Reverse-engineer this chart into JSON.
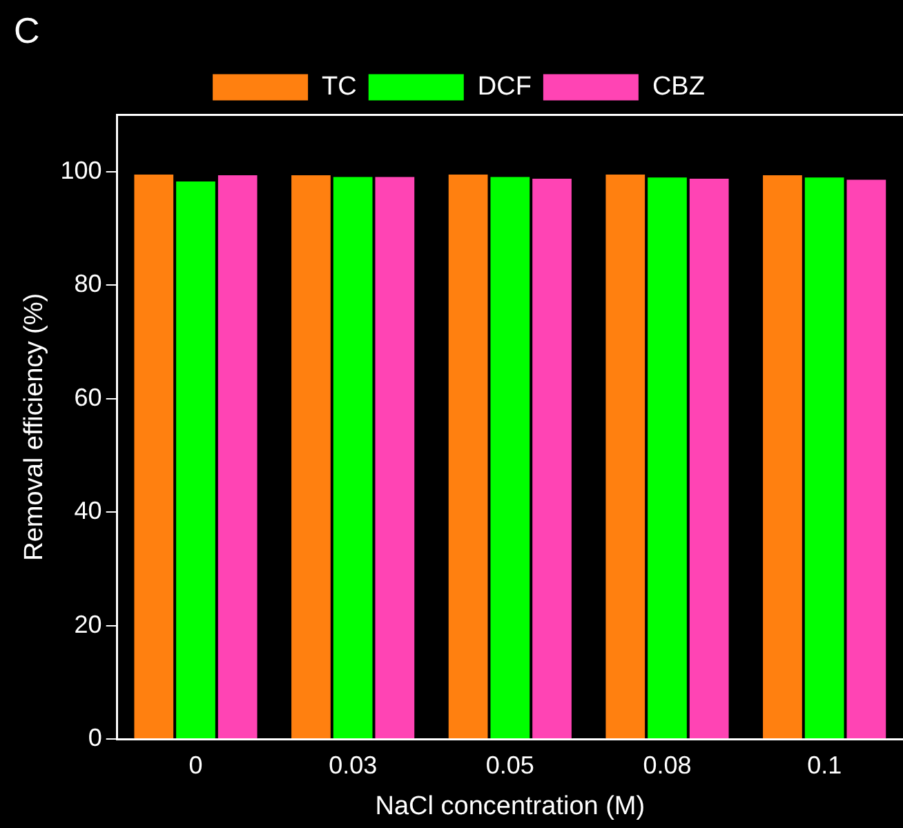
{
  "chart_data": {
    "type": "bar",
    "title": "C",
    "xlabel": "NaCl concentration (M)",
    "ylabel": "Removal efficiency (%)",
    "categories": [
      "0",
      "0.03",
      "0.05",
      "0.08",
      "0.1"
    ],
    "series": [
      {
        "name": "TC",
        "color": "#ff8010",
        "values": [
          99.7,
          99.6,
          99.7,
          99.7,
          99.6
        ]
      },
      {
        "name": "DCF",
        "color": "#00ff00",
        "values": [
          98.5,
          99.3,
          99.3,
          99.2,
          99.2
        ]
      },
      {
        "name": "CBZ",
        "color": "#ff44b4",
        "values": [
          99.6,
          99.3,
          99.0,
          99.0,
          98.8
        ]
      }
    ],
    "ylim": [
      0,
      110
    ],
    "yticks": [
      0,
      20,
      40,
      60,
      80,
      100
    ],
    "grid": false,
    "legend": "top"
  }
}
